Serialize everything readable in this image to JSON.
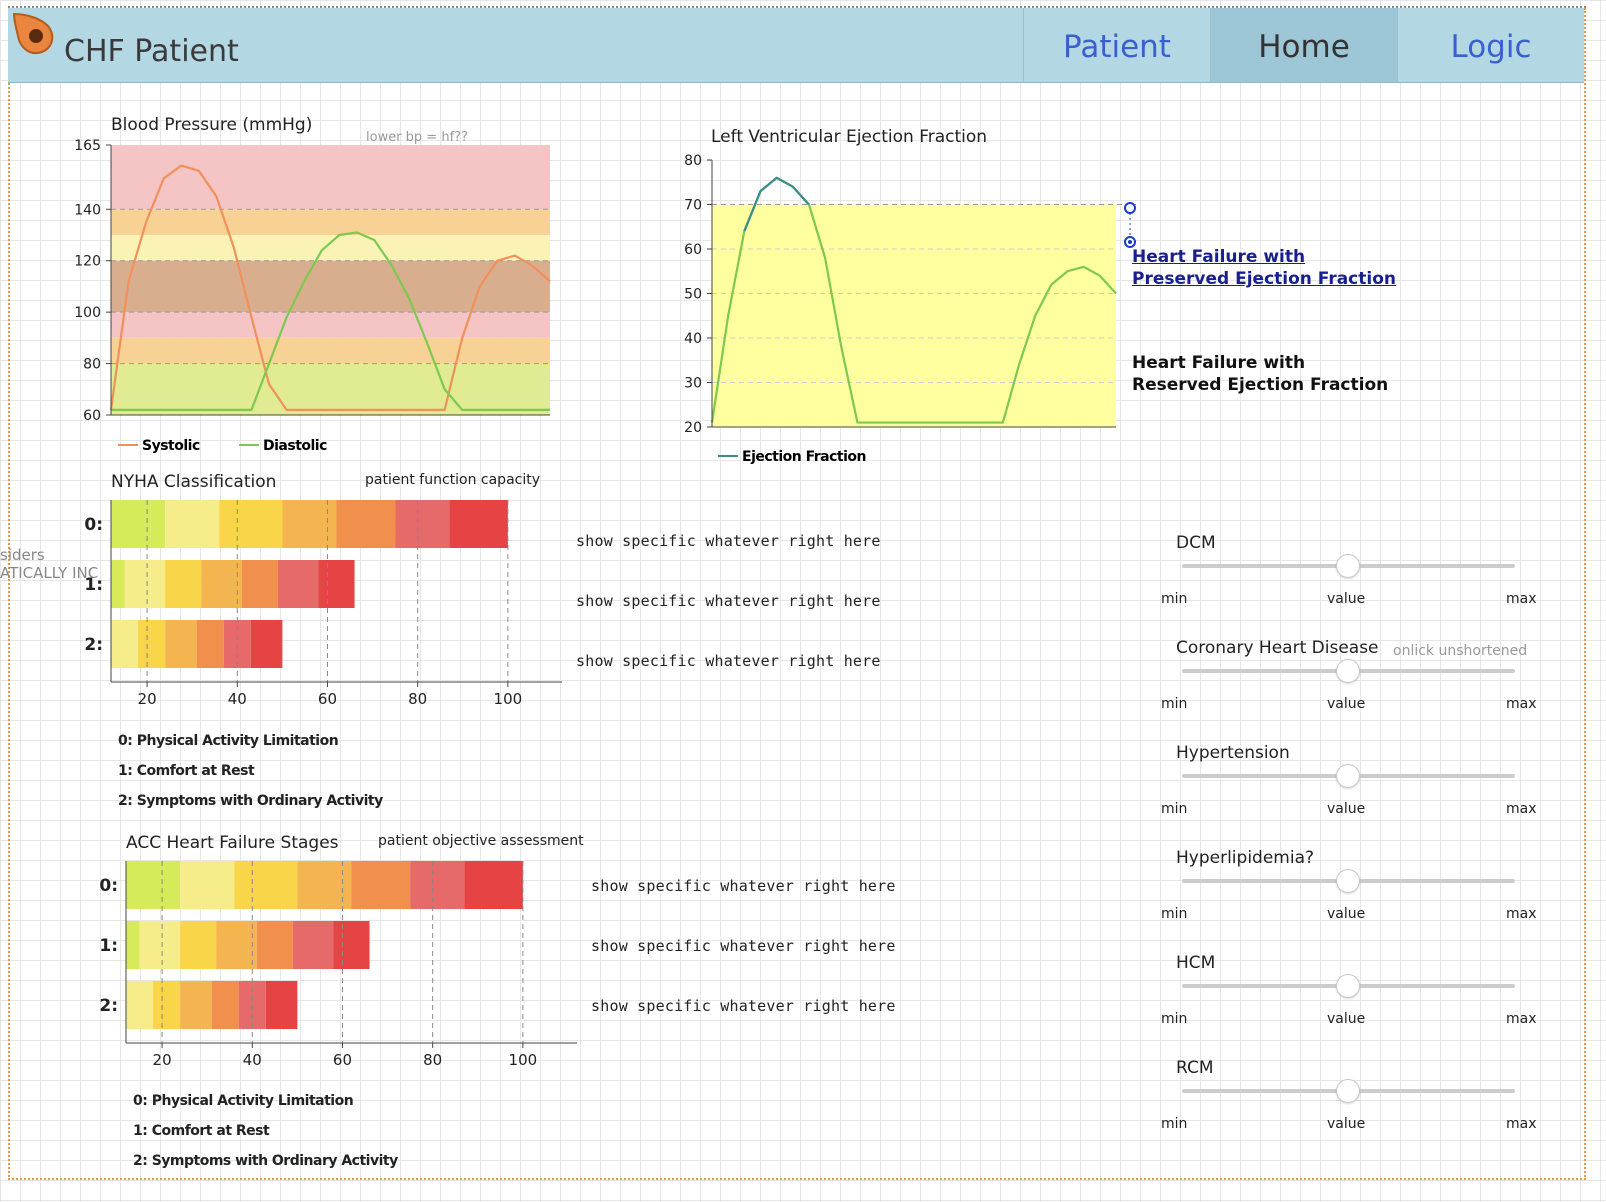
{
  "app": {
    "title": "CHF Patient",
    "nav": [
      {
        "label": "Patient",
        "active": false
      },
      {
        "label": "Home",
        "active": true
      },
      {
        "label": "Logic",
        "active": false
      }
    ]
  },
  "side_hint": {
    "line1": "siders",
    "line2": "ATICALLY INC"
  },
  "bp": {
    "title": "Blood Pressure (mmHg)",
    "note": "lower bp = hf??",
    "legend": [
      "Systolic",
      "Diastolic"
    ],
    "yticks": [
      "165",
      "140",
      "120",
      "100",
      "80",
      "60"
    ]
  },
  "lvef": {
    "title": "Left Ventricular Ejection Fraction",
    "legend": "Ejection Fraction",
    "yticks": [
      "80",
      "70",
      "60",
      "50",
      "40",
      "30",
      "20"
    ],
    "label_preserved": [
      "Heart Failure with",
      "Preserved Ejection Fraction"
    ],
    "label_reserved": [
      "Heart Failure with",
      "Reserved Ejection Fraction"
    ]
  },
  "nyha": {
    "title": "NYHA Classification",
    "note": "patient function capacity",
    "rows": [
      "0:",
      "1:",
      "2:"
    ],
    "xticks": [
      "20",
      "40",
      "60",
      "80",
      "100"
    ],
    "show": [
      "show specific whatever right here",
      "show specific whatever right here",
      "show specific whatever right here"
    ],
    "legend": [
      "0:  Physical Activity Limitation",
      "1:  Comfort at Rest",
      "2:  Symptoms with Ordinary Activity"
    ]
  },
  "acc": {
    "title": "ACC Heart Failure Stages",
    "note": "patient objective assessment",
    "rows": [
      "0:",
      "1:",
      "2:"
    ],
    "xticks": [
      "20",
      "40",
      "60",
      "80",
      "100"
    ],
    "show": [
      "show specific whatever right here",
      "show specific whatever right here",
      "show specific whatever right here"
    ],
    "legend": [
      "0:  Physical Activity Limitation",
      "1:  Comfort at Rest",
      "2:  Symptoms with Ordinary Activity"
    ]
  },
  "sliders": [
    {
      "label": "DCM",
      "min": "min",
      "value": "value",
      "max": "max",
      "hint": ""
    },
    {
      "label": "Coronary Heart Disease",
      "min": "min",
      "value": "value",
      "max": "max",
      "hint": "onlick unshortened"
    },
    {
      "label": "Hypertension",
      "min": "min",
      "value": "value",
      "max": "max",
      "hint": ""
    },
    {
      "label": "Hyperlipidemia?",
      "min": "min",
      "value": "value",
      "max": "max",
      "hint": ""
    },
    {
      "label": "HCM",
      "min": "min",
      "value": "value",
      "max": "max",
      "hint": ""
    },
    {
      "label": "RCM",
      "min": "min",
      "value": "value",
      "max": "max",
      "hint": ""
    }
  ],
  "chart_data": [
    {
      "type": "line",
      "title": "Blood Pressure (mmHg)",
      "ylim": [
        60,
        165
      ],
      "series": [
        {
          "name": "Systolic",
          "x": [
            0,
            2,
            4,
            6,
            8,
            10,
            12,
            14,
            16,
            18,
            20,
            22,
            24,
            26,
            28,
            30,
            32,
            34,
            36,
            38,
            40,
            42,
            44,
            46,
            48,
            50
          ],
          "values": [
            62,
            112,
            135,
            152,
            157,
            155,
            145,
            125,
            98,
            72,
            62,
            62,
            62,
            62,
            62,
            62,
            62,
            62,
            62,
            62,
            90,
            110,
            120,
            122,
            118,
            112
          ]
        },
        {
          "name": "Diastolic",
          "x": [
            0,
            2,
            4,
            6,
            8,
            10,
            12,
            14,
            16,
            18,
            20,
            22,
            24,
            26,
            28,
            30,
            32,
            34,
            36,
            38,
            40,
            42,
            44,
            46,
            48,
            50
          ],
          "values": [
            62,
            62,
            62,
            62,
            62,
            62,
            62,
            62,
            62,
            80,
            98,
            112,
            124,
            130,
            131,
            128,
            118,
            105,
            88,
            70,
            62,
            62,
            62,
            62,
            62,
            62
          ]
        }
      ],
      "bands": [
        {
          "from": 140,
          "to": 165,
          "color": "#f5c4c4"
        },
        {
          "from": 130,
          "to": 140,
          "color": "#f8d295"
        },
        {
          "from": 120,
          "to": 130,
          "color": "#fbf3b6"
        },
        {
          "from": 100,
          "to": 120,
          "color": "#d9ae8e"
        },
        {
          "from": 90,
          "to": 100,
          "color": "#f5c4c4"
        },
        {
          "from": 80,
          "to": 90,
          "color": "#f8d295"
        },
        {
          "from": 60,
          "to": 80,
          "color": "#e0eb93"
        }
      ]
    },
    {
      "type": "line",
      "title": "Left Ventricular Ejection Fraction",
      "ylim": [
        20,
        80
      ],
      "series": [
        {
          "name": "Ejection Fraction",
          "x": [
            0,
            2,
            4,
            6,
            8,
            10,
            12,
            14,
            16,
            18,
            20,
            22,
            24,
            26,
            28,
            30,
            32,
            34,
            36,
            38,
            40,
            42,
            44,
            46,
            48,
            50
          ],
          "values": [
            21,
            45,
            64,
            73,
            76,
            74,
            70,
            58,
            38,
            21,
            21,
            21,
            21,
            21,
            21,
            21,
            21,
            21,
            21,
            34,
            45,
            52,
            55,
            56,
            54,
            50
          ]
        }
      ],
      "band": {
        "from": 20,
        "to": 70,
        "color": "#ffffa0"
      }
    },
    {
      "type": "bar",
      "title": "NYHA Classification",
      "categories": [
        "0:",
        "1:",
        "2:"
      ],
      "xlim": [
        12,
        112
      ],
      "segments": [
        [
          12,
          24,
          36,
          50,
          62,
          75,
          87,
          100
        ],
        [
          12,
          15,
          24,
          32,
          41,
          49,
          58,
          66
        ],
        [
          12,
          18,
          24,
          31,
          37,
          43,
          50
        ]
      ],
      "values": [
        100,
        66,
        50
      ]
    },
    {
      "type": "bar",
      "title": "ACC Heart Failure Stages",
      "categories": [
        "0:",
        "1:",
        "2:"
      ],
      "xlim": [
        12,
        112
      ],
      "segments": [
        [
          12,
          24,
          36,
          50,
          62,
          75,
          87,
          100
        ],
        [
          12,
          15,
          24,
          32,
          41,
          49,
          58,
          66
        ],
        [
          12,
          18,
          24,
          31,
          37,
          43,
          50
        ]
      ],
      "values": [
        100,
        66,
        50
      ]
    }
  ]
}
